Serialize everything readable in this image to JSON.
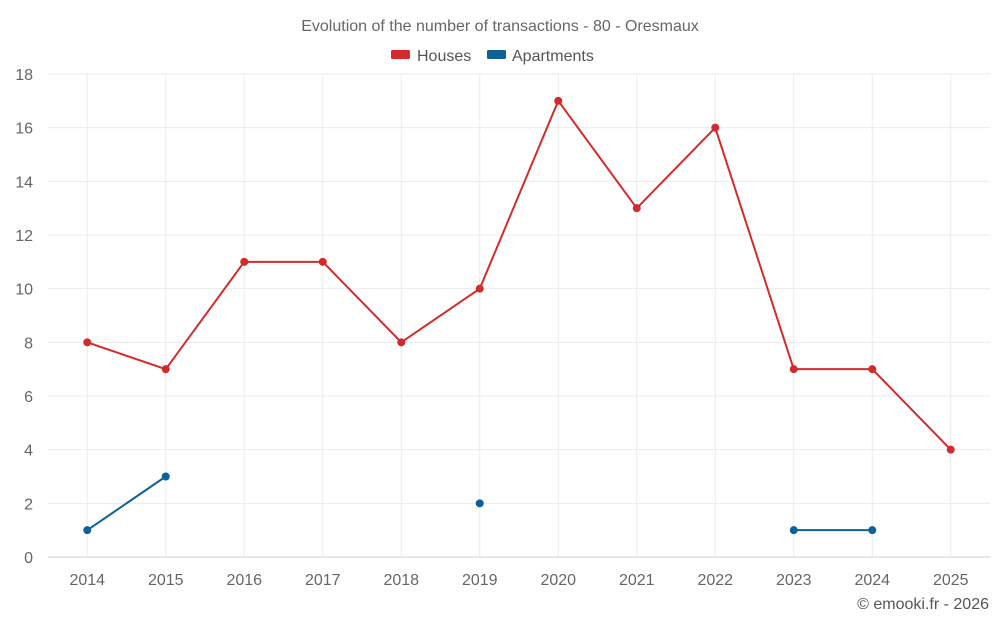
{
  "chart_data": {
    "type": "line",
    "title": "Evolution of the number of transactions - 80 - Oresmaux",
    "categories": [
      "2014",
      "2015",
      "2016",
      "2017",
      "2018",
      "2019",
      "2020",
      "2021",
      "2022",
      "2023",
      "2024",
      "2025"
    ],
    "ylim": [
      0,
      18
    ],
    "yticks": [
      0,
      2,
      4,
      6,
      8,
      10,
      12,
      14,
      16,
      18
    ],
    "grid": true,
    "legend_position": "top-center",
    "series": [
      {
        "name": "Houses",
        "color": "#d32b2b",
        "values": [
          8,
          7,
          11,
          11,
          8,
          10,
          17,
          13,
          16,
          7,
          7,
          4
        ]
      },
      {
        "name": "Apartments",
        "color": "#0d6197",
        "values": [
          1,
          3,
          null,
          null,
          null,
          2,
          null,
          null,
          null,
          1,
          1,
          null
        ]
      }
    ]
  },
  "credit": "© emooki.fr - 2026"
}
